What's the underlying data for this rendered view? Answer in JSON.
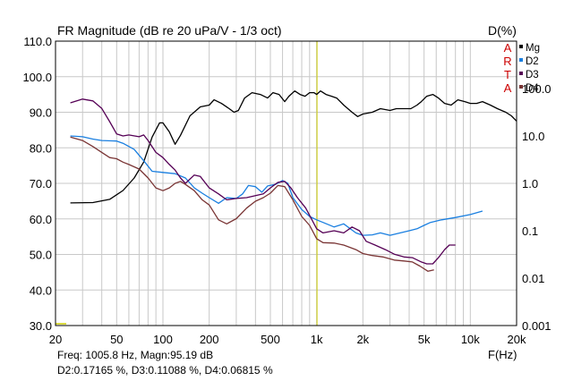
{
  "chart_data": {
    "type": "line",
    "title": "FR Magnitude (dB re 20 uPa/V - 1/3 oct)",
    "right_axis_title": "D(%)",
    "xlabel": "F(Hz)",
    "xscale": "log",
    "xlim": [
      20,
      20000
    ],
    "ylim_left": [
      30,
      110
    ],
    "ylim_right_log": [
      0.001,
      1000
    ],
    "x_ticks": [
      {
        "value": 20,
        "label": "20"
      },
      {
        "value": 50,
        "label": "50"
      },
      {
        "value": 100,
        "label": "100"
      },
      {
        "value": 200,
        "label": "200"
      },
      {
        "value": 500,
        "label": "500"
      },
      {
        "value": 1000,
        "label": "1k"
      },
      {
        "value": 2000,
        "label": "2k"
      },
      {
        "value": 5000,
        "label": "5k"
      },
      {
        "value": 10000,
        "label": "10k"
      },
      {
        "value": 20000,
        "label": "20k"
      }
    ],
    "y_left_ticks": [
      {
        "value": 30,
        "label": "30.0"
      },
      {
        "value": 40,
        "label": "40.0"
      },
      {
        "value": 50,
        "label": "50.0"
      },
      {
        "value": 60,
        "label": "60.0"
      },
      {
        "value": 70,
        "label": "70.0"
      },
      {
        "value": 80,
        "label": "80.0"
      },
      {
        "value": 90,
        "label": "90.0"
      },
      {
        "value": 100,
        "label": "100.0"
      },
      {
        "value": 110,
        "label": "110.0"
      }
    ],
    "y_right_ticks": [
      {
        "value": 0.001,
        "label": "0.001"
      },
      {
        "value": 0.01,
        "label": "0.01"
      },
      {
        "value": 0.1,
        "label": "0.1"
      },
      {
        "value": 1,
        "label": "1.0"
      },
      {
        "value": 10,
        "label": "10.0"
      },
      {
        "value": 100,
        "label": "100.0"
      }
    ],
    "cursor": {
      "x": 1005.8,
      "color": "#cccc00"
    },
    "grid": true,
    "legend_position": "top-right",
    "series": [
      {
        "name": "Mg",
        "axis": "left",
        "color": "#000000",
        "points": [
          [
            25,
            64.5
          ],
          [
            35,
            64.6
          ],
          [
            45,
            65.5
          ],
          [
            55,
            68
          ],
          [
            65,
            71.5
          ],
          [
            75,
            76
          ],
          [
            85,
            83
          ],
          [
            95,
            87
          ],
          [
            100,
            87
          ],
          [
            110,
            84.5
          ],
          [
            120,
            81
          ],
          [
            130,
            83.5
          ],
          [
            150,
            89
          ],
          [
            175,
            91.5
          ],
          [
            200,
            92
          ],
          [
            215,
            93.5
          ],
          [
            240,
            92.5
          ],
          [
            270,
            91
          ],
          [
            290,
            90
          ],
          [
            310,
            90.5
          ],
          [
            340,
            94
          ],
          [
            380,
            95.5
          ],
          [
            430,
            95
          ],
          [
            480,
            94
          ],
          [
            520,
            95.5
          ],
          [
            570,
            95
          ],
          [
            620,
            93
          ],
          [
            660,
            94.5
          ],
          [
            720,
            96
          ],
          [
            780,
            95
          ],
          [
            840,
            94.5
          ],
          [
            900,
            95.5
          ],
          [
            960,
            95.5
          ],
          [
            1000,
            95
          ],
          [
            1060,
            96
          ],
          [
            1150,
            95
          ],
          [
            1250,
            94.5
          ],
          [
            1350,
            94
          ],
          [
            1500,
            92
          ],
          [
            1700,
            90
          ],
          [
            1850,
            88.8
          ],
          [
            2000,
            89.5
          ],
          [
            2300,
            90
          ],
          [
            2600,
            91
          ],
          [
            3000,
            90.5
          ],
          [
            3300,
            91
          ],
          [
            3700,
            91
          ],
          [
            4100,
            91
          ],
          [
            4500,
            92
          ],
          [
            4800,
            93
          ],
          [
            5200,
            94.5
          ],
          [
            5700,
            95
          ],
          [
            6200,
            94
          ],
          [
            6800,
            92.5
          ],
          [
            7500,
            92
          ],
          [
            8300,
            93.5
          ],
          [
            9200,
            93
          ],
          [
            10000,
            92.5
          ],
          [
            11000,
            92.5
          ],
          [
            12000,
            93
          ],
          [
            13500,
            92
          ],
          [
            15000,
            91
          ],
          [
            17000,
            90
          ],
          [
            18500,
            89
          ],
          [
            20000,
            87.5
          ]
        ]
      },
      {
        "name": "D2",
        "axis": "right",
        "color": "#1a7fe0",
        "points": [
          [
            25,
            10
          ],
          [
            30,
            9.6
          ],
          [
            35,
            8.6
          ],
          [
            40,
            8
          ],
          [
            50,
            7.8
          ],
          [
            55,
            7
          ],
          [
            65,
            5.2
          ],
          [
            75,
            3
          ],
          [
            85,
            1.8
          ],
          [
            100,
            1.7
          ],
          [
            120,
            1.6
          ],
          [
            140,
            1.3
          ],
          [
            160,
            0.8
          ],
          [
            180,
            0.62
          ],
          [
            200,
            0.5
          ],
          [
            230,
            0.38
          ],
          [
            260,
            0.5
          ],
          [
            300,
            0.48
          ],
          [
            330,
            0.6
          ],
          [
            360,
            0.9
          ],
          [
            400,
            0.85
          ],
          [
            440,
            0.65
          ],
          [
            480,
            0.88
          ],
          [
            540,
            0.95
          ],
          [
            600,
            1.15
          ],
          [
            650,
            1.0
          ],
          [
            700,
            0.5
          ],
          [
            800,
            0.28
          ],
          [
            900,
            0.2
          ],
          [
            1000,
            0.17
          ],
          [
            1100,
            0.15
          ],
          [
            1300,
            0.12
          ],
          [
            1500,
            0.14
          ],
          [
            1800,
            0.09
          ],
          [
            2000,
            0.08
          ],
          [
            2300,
            0.082
          ],
          [
            2600,
            0.09
          ],
          [
            3000,
            0.08
          ],
          [
            3500,
            0.09
          ],
          [
            4000,
            0.1
          ],
          [
            4500,
            0.11
          ],
          [
            5000,
            0.13
          ],
          [
            5500,
            0.15
          ],
          [
            6500,
            0.17
          ],
          [
            8000,
            0.19
          ],
          [
            10000,
            0.22
          ],
          [
            12000,
            0.26
          ]
        ]
      },
      {
        "name": "D3",
        "axis": "right",
        "color": "#550055",
        "points": [
          [
            25,
            50
          ],
          [
            30,
            60
          ],
          [
            35,
            55
          ],
          [
            40,
            38
          ],
          [
            45,
            20
          ],
          [
            50,
            11
          ],
          [
            55,
            10
          ],
          [
            60,
            10.5
          ],
          [
            70,
            9.6
          ],
          [
            75,
            10.5
          ],
          [
            80,
            8
          ],
          [
            90,
            4.5
          ],
          [
            100,
            3.5
          ],
          [
            110,
            2.5
          ],
          [
            120,
            1.9
          ],
          [
            130,
            1.3
          ],
          [
            140,
            1.0
          ],
          [
            160,
            1.5
          ],
          [
            175,
            1.4
          ],
          [
            200,
            0.8
          ],
          [
            230,
            0.6
          ],
          [
            260,
            0.45
          ],
          [
            300,
            0.48
          ],
          [
            350,
            0.5
          ],
          [
            400,
            0.55
          ],
          [
            450,
            0.6
          ],
          [
            500,
            0.8
          ],
          [
            560,
            1.05
          ],
          [
            620,
            1.1
          ],
          [
            680,
            0.8
          ],
          [
            750,
            0.5
          ],
          [
            850,
            0.3
          ],
          [
            1000,
            0.11
          ],
          [
            1100,
            0.09
          ],
          [
            1300,
            0.1
          ],
          [
            1500,
            0.09
          ],
          [
            1700,
            0.12
          ],
          [
            1900,
            0.1
          ],
          [
            2100,
            0.06
          ],
          [
            2400,
            0.05
          ],
          [
            2800,
            0.04
          ],
          [
            3200,
            0.032
          ],
          [
            3700,
            0.028
          ],
          [
            4200,
            0.027
          ],
          [
            4800,
            0.022
          ],
          [
            5200,
            0.02
          ],
          [
            5700,
            0.02
          ],
          [
            6200,
            0.027
          ],
          [
            6800,
            0.04
          ],
          [
            7300,
            0.05
          ],
          [
            8000,
            0.05
          ]
        ]
      },
      {
        "name": "D4",
        "axis": "right",
        "color": "#7a3535",
        "points": [
          [
            25,
            9.5
          ],
          [
            30,
            8
          ],
          [
            35,
            6
          ],
          [
            40,
            4.5
          ],
          [
            45,
            3.5
          ],
          [
            50,
            3.3
          ],
          [
            55,
            2.8
          ],
          [
            60,
            2.5
          ],
          [
            70,
            2
          ],
          [
            80,
            1.3
          ],
          [
            90,
            0.8
          ],
          [
            100,
            0.7
          ],
          [
            110,
            0.8
          ],
          [
            120,
            1
          ],
          [
            130,
            1.1
          ],
          [
            140,
            0.95
          ],
          [
            160,
            0.7
          ],
          [
            180,
            0.45
          ],
          [
            200,
            0.35
          ],
          [
            230,
            0.17
          ],
          [
            260,
            0.14
          ],
          [
            300,
            0.18
          ],
          [
            350,
            0.3
          ],
          [
            400,
            0.42
          ],
          [
            450,
            0.5
          ],
          [
            500,
            0.62
          ],
          [
            560,
            0.9
          ],
          [
            620,
            0.85
          ],
          [
            700,
            0.45
          ],
          [
            800,
            0.2
          ],
          [
            900,
            0.13
          ],
          [
            1000,
            0.068
          ],
          [
            1100,
            0.056
          ],
          [
            1300,
            0.055
          ],
          [
            1500,
            0.05
          ],
          [
            1800,
            0.04
          ],
          [
            2000,
            0.033
          ],
          [
            2300,
            0.03
          ],
          [
            2700,
            0.028
          ],
          [
            3200,
            0.024
          ],
          [
            3700,
            0.023
          ],
          [
            4200,
            0.022
          ],
          [
            4700,
            0.018
          ],
          [
            5300,
            0.014
          ],
          [
            5800,
            0.015
          ]
        ]
      }
    ]
  },
  "legend": {
    "arta_letters": [
      "A",
      "R",
      "T",
      "A"
    ],
    "items": [
      {
        "label": "Mg",
        "color": "#000000"
      },
      {
        "label": "D2",
        "color": "#1a7fe0"
      },
      {
        "label": "D3",
        "color": "#550055"
      },
      {
        "label": "D4",
        "color": "#7a3535"
      }
    ]
  },
  "footer": {
    "line1": "Freq: 1005.8 Hz, Magn:95.19 dB",
    "line2": "D2:0.17165 %, D3:0.11088 %, D4:0.06815 %"
  }
}
